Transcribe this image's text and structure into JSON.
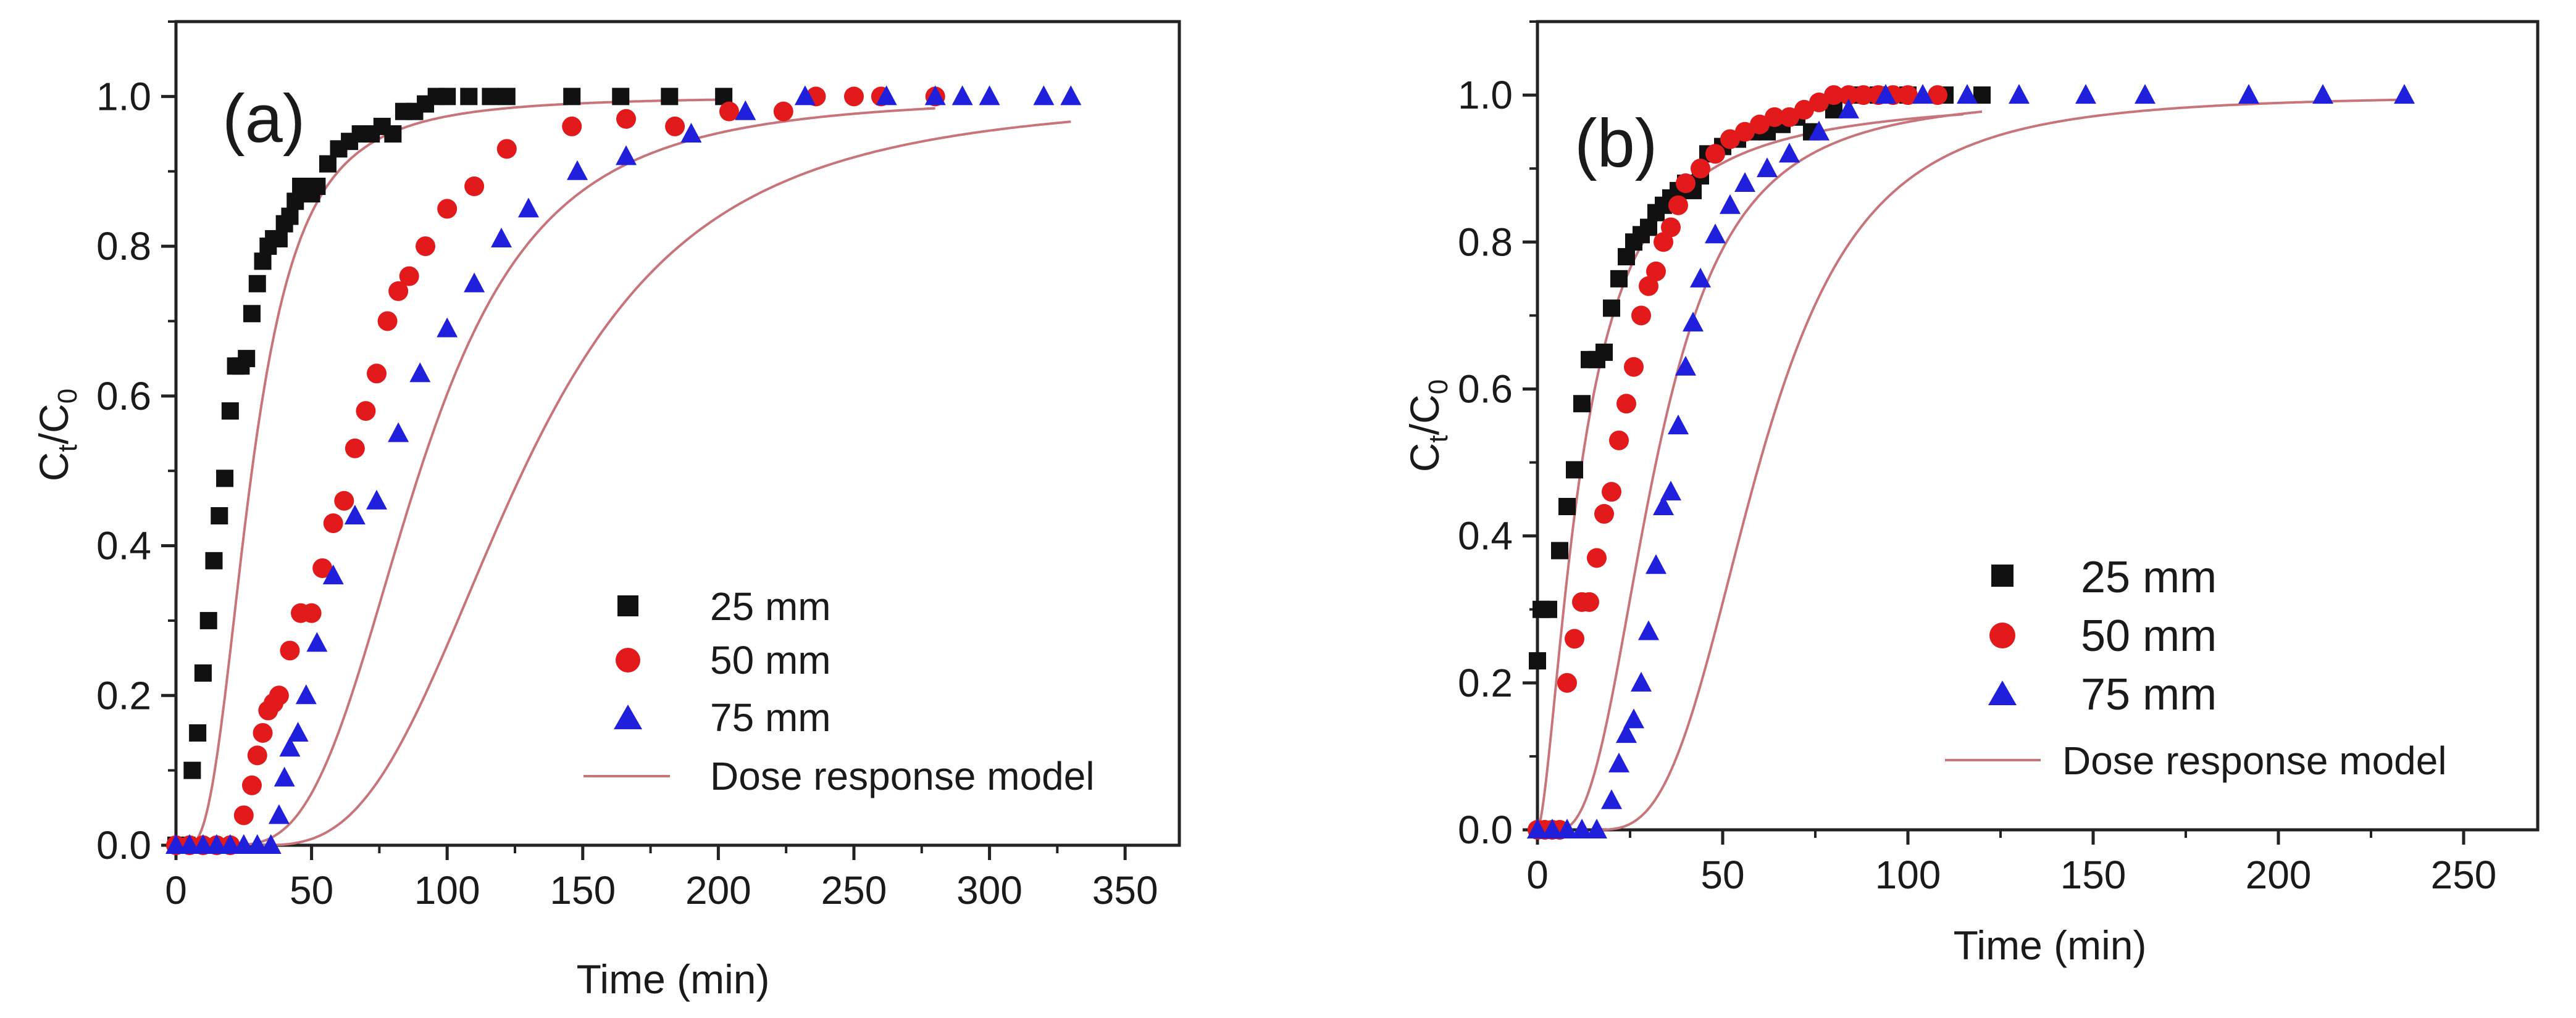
{
  "chart_data": [
    {
      "type": "scatter",
      "panel_label": "(a)",
      "xlabel": "Time (min)",
      "ylabel_main": "C",
      "ylabel_sub1": "t",
      "ylabel_mid": "/C",
      "ylabel_sub2": "0",
      "xlim": [
        0,
        370
      ],
      "ylim": [
        0,
        1.1
      ],
      "xticks": [
        0,
        50,
        100,
        150,
        200,
        250,
        300,
        350
      ],
      "yticks": [
        0.0,
        0.2,
        0.4,
        0.6,
        0.8,
        1.0
      ],
      "xtick_labels": [
        "0",
        "50",
        "100",
        "150",
        "200",
        "250",
        "300",
        "350"
      ],
      "ytick_labels": [
        "0.0",
        "0.2",
        "0.4",
        "0.6",
        "0.8",
        "1.0"
      ],
      "legend_position": "lower-right",
      "colors": {
        "s25": "#111111",
        "s50": "#e31a1c",
        "s75": "#1f1fdc",
        "model": "#c7757a"
      },
      "series": [
        {
          "name": "25 mm",
          "marker": "square",
          "x": [
            0,
            2,
            4,
            6,
            8,
            10,
            12,
            14,
            16,
            18,
            20,
            22,
            24,
            26,
            28,
            30,
            32,
            34,
            36,
            38,
            40,
            42,
            44,
            46,
            48,
            50,
            52,
            56,
            60,
            64,
            68,
            72,
            76,
            80,
            84,
            88,
            92,
            96,
            100,
            108,
            116,
            122,
            146,
            164,
            182,
            202
          ],
          "y": [
            0,
            0,
            0,
            0.1,
            0.15,
            0.23,
            0.3,
            0.38,
            0.44,
            0.49,
            0.58,
            0.64,
            0.64,
            0.65,
            0.71,
            0.75,
            0.78,
            0.8,
            0.81,
            0.81,
            0.83,
            0.84,
            0.86,
            0.88,
            0.87,
            0.87,
            0.88,
            0.91,
            0.93,
            0.94,
            0.95,
            0.95,
            0.96,
            0.95,
            0.98,
            0.98,
            0.99,
            1.0,
            1.0,
            1.0,
            1.0,
            1.0,
            1.0,
            1.0,
            1.0,
            1.0
          ],
          "x_fix": [
            0,
            2,
            4,
            6,
            8,
            10,
            12,
            14,
            16,
            18,
            20,
            22,
            24,
            26,
            28,
            30,
            32,
            34,
            36,
            38,
            40,
            42,
            44,
            46,
            48,
            50,
            52,
            56,
            60,
            64,
            68,
            72,
            76,
            80,
            84,
            88,
            92,
            96,
            100,
            108,
            116,
            122,
            146,
            164,
            182,
            202
          ]
        },
        {
          "name": "50 mm",
          "marker": "circle",
          "x": [
            0,
            5,
            10,
            15,
            20,
            25,
            28,
            30,
            32,
            34,
            36,
            38,
            42,
            46,
            50,
            54,
            58,
            62,
            66,
            70,
            74,
            78,
            82,
            86,
            92,
            100,
            110,
            122,
            146,
            166,
            184,
            204,
            224,
            236,
            250,
            260,
            280
          ],
          "y": [
            0,
            0,
            0,
            0,
            0,
            0.04,
            0.08,
            0.12,
            0.15,
            0.18,
            0.19,
            0.2,
            0.26,
            0.31,
            0.31,
            0.37,
            0.43,
            0.46,
            0.53,
            0.58,
            0.63,
            0.7,
            0.74,
            0.76,
            0.8,
            0.85,
            0.88,
            0.93,
            0.96,
            0.97,
            0.96,
            0.98,
            0.98,
            1.0,
            1.0,
            1.0,
            1.0
          ]
        },
        {
          "name": "75 mm",
          "marker": "triangle",
          "x": [
            0,
            5,
            10,
            15,
            20,
            25,
            30,
            35,
            38,
            40,
            42,
            45,
            48,
            52,
            58,
            66,
            74,
            82,
            90,
            100,
            110,
            120,
            130,
            148,
            166,
            190,
            210,
            232,
            262,
            280,
            290,
            300,
            320,
            330
          ],
          "y": [
            0,
            0,
            0,
            0,
            0,
            0,
            0,
            0,
            0.04,
            0.09,
            0.13,
            0.15,
            0.2,
            0.27,
            0.36,
            0.44,
            0.46,
            0.55,
            0.63,
            0.69,
            0.75,
            0.81,
            0.85,
            0.9,
            0.92,
            0.95,
            0.98,
            1.0,
            1.0,
            1.0,
            1.0,
            1.0,
            1.0,
            1.0
          ]
        },
        {
          "name": "Dose response model",
          "marker": "line"
        }
      ],
      "model_curves": [
        {
          "for": "25 mm",
          "a": 2.6,
          "b": 24,
          "x0": 4,
          "xmax": 205
        },
        {
          "for": "50 mm",
          "a": 3.2,
          "b": 72,
          "x0": 18,
          "xmax": 280
        },
        {
          "for": "75 mm",
          "a": 3.0,
          "b": 98,
          "x0": 30,
          "xmax": 330
        }
      ]
    },
    {
      "type": "scatter",
      "panel_label": "(b)",
      "xlabel": "Time (min)",
      "ylabel_main": "C",
      "ylabel_sub1": "t",
      "ylabel_mid": "/C",
      "ylabel_sub2": "0",
      "xlim": [
        0,
        270
      ],
      "ylim": [
        0,
        1.1
      ],
      "xticks": [
        0,
        50,
        100,
        150,
        200,
        250
      ],
      "yticks": [
        0.0,
        0.2,
        0.4,
        0.6,
        0.8,
        1.0
      ],
      "xtick_labels": [
        "0",
        "50",
        "100",
        "150",
        "200",
        "250"
      ],
      "ytick_labels": [
        "0.0",
        "0.2",
        "0.4",
        "0.6",
        "0.8",
        "1.0"
      ],
      "legend_position": "lower-right",
      "colors": {
        "s25": "#111111",
        "s50": "#e31a1c",
        "s75": "#1f1fdc",
        "model": "#c7757a"
      },
      "series": [
        {
          "name": "25 mm",
          "marker": "square",
          "x": [
            0,
            1,
            3,
            6,
            8,
            10,
            12,
            14,
            16,
            18,
            20,
            22,
            24,
            26,
            28,
            30,
            32,
            34,
            36,
            38,
            40,
            42,
            44,
            46,
            50,
            54,
            58,
            62,
            66,
            70,
            74,
            80,
            86,
            92,
            100,
            110,
            120
          ],
          "y": [
            0.23,
            0.3,
            0.3,
            0.38,
            0.44,
            0.49,
            0.58,
            0.64,
            0.64,
            0.65,
            0.71,
            0.75,
            0.78,
            0.8,
            0.81,
            0.82,
            0.84,
            0.85,
            0.86,
            0.87,
            0.88,
            0.87,
            0.89,
            0.92,
            0.93,
            0.94,
            0.95,
            0.95,
            0.96,
            0.97,
            0.95,
            0.98,
            1.0,
            1.0,
            1.0,
            1.0,
            1.0
          ]
        },
        {
          "name": "50 mm",
          "marker": "circle",
          "x": [
            0,
            2,
            4,
            6,
            8,
            10,
            12,
            14,
            16,
            18,
            20,
            22,
            24,
            26,
            28,
            30,
            32,
            34,
            36,
            38,
            40,
            44,
            48,
            52,
            56,
            60,
            64,
            68,
            72,
            76,
            80,
            84,
            88,
            92,
            96,
            100,
            108
          ],
          "y": [
            0,
            0,
            0,
            0,
            0.2,
            0.26,
            0.31,
            0.31,
            0.37,
            0.43,
            0.46,
            0.53,
            0.58,
            0.63,
            0.7,
            0.74,
            0.76,
            0.8,
            0.82,
            0.85,
            0.88,
            0.9,
            0.92,
            0.94,
            0.95,
            0.96,
            0.97,
            0.97,
            0.98,
            0.99,
            1.0,
            1.0,
            1.0,
            1.0,
            1.0,
            1.0,
            1.0
          ]
        },
        {
          "name": "75 mm",
          "marker": "triangle",
          "x": [
            0,
            4,
            8,
            12,
            16,
            20,
            22,
            24,
            26,
            28,
            30,
            32,
            34,
            36,
            38,
            40,
            42,
            44,
            48,
            52,
            56,
            62,
            68,
            76,
            84,
            94,
            104,
            116,
            130,
            148,
            164,
            192,
            212,
            234
          ],
          "y": [
            0,
            0,
            0,
            0,
            0,
            0.04,
            0.09,
            0.13,
            0.15,
            0.2,
            0.27,
            0.36,
            0.44,
            0.46,
            0.55,
            0.63,
            0.69,
            0.75,
            0.81,
            0.85,
            0.88,
            0.9,
            0.92,
            0.95,
            0.98,
            1.0,
            1.0,
            1.0,
            1.0,
            1.0,
            1.0,
            1.0,
            1.0,
            1.0
          ]
        },
        {
          "name": "Dose response model",
          "marker": "line"
        }
      ],
      "model_curves": [
        {
          "for": "25 mm",
          "a": 1.6,
          "b": 12,
          "x0": 0,
          "xmax": 115
        },
        {
          "for": "50 mm",
          "a": 2.6,
          "b": 27,
          "x0": 5,
          "xmax": 120
        },
        {
          "for": "75 mm",
          "a": 3.2,
          "b": 45,
          "x0": 15,
          "xmax": 235
        }
      ]
    }
  ]
}
